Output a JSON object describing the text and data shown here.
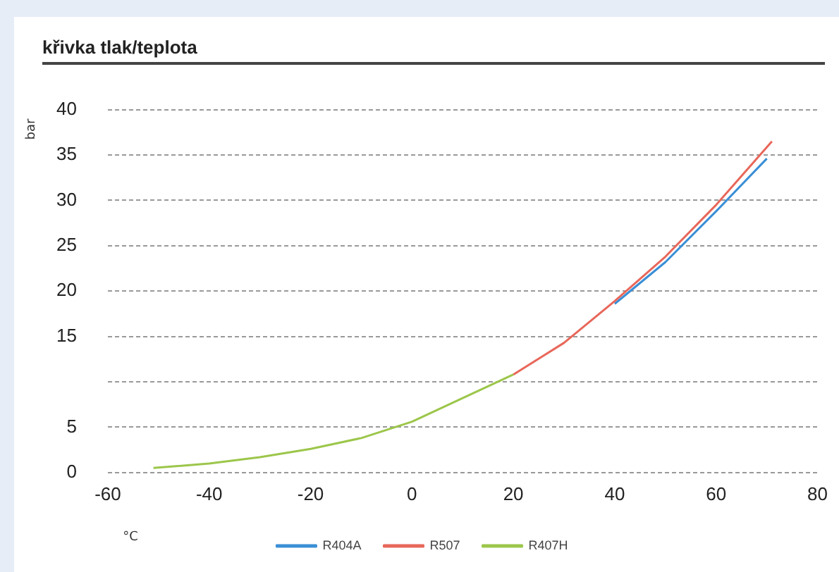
{
  "chart_data": {
    "type": "line",
    "title": "křivka tlak/teplota",
    "xlabel": "°C",
    "ylabel": "bar",
    "x": [
      40,
      50,
      60,
      70
    ],
    "series": [
      {
        "name": "R404A",
        "color": "#3a8fd6",
        "values": [
          18.6,
          23.2,
          28.8,
          34.6
        ]
      },
      {
        "name": "R507",
        "color": "#e8675a",
        "x": [
          20,
          30,
          40,
          50,
          60,
          71
        ],
        "values": [
          10.8,
          14.3,
          18.9,
          23.8,
          29.5,
          36.5
        ]
      },
      {
        "name": "R407H",
        "color": "#9cc64a",
        "x": [
          -51,
          -40,
          -30,
          -20,
          -10,
          0,
          10,
          20
        ],
        "values": [
          0.5,
          1.0,
          1.7,
          2.6,
          3.8,
          5.6,
          8.2,
          10.8
        ]
      }
    ],
    "xlim": [
      -60,
      80
    ],
    "xticks": [
      -60,
      -40,
      -20,
      0,
      20,
      40,
      60,
      80
    ],
    "ylim": [
      0,
      40
    ],
    "yticks": [
      0,
      5,
      {
        "value": 10,
        "label": null
      },
      15,
      20,
      25,
      30,
      35,
      40
    ],
    "grid": "y",
    "legend": "bottom",
    "marker": "none",
    "line_style": "solid"
  }
}
